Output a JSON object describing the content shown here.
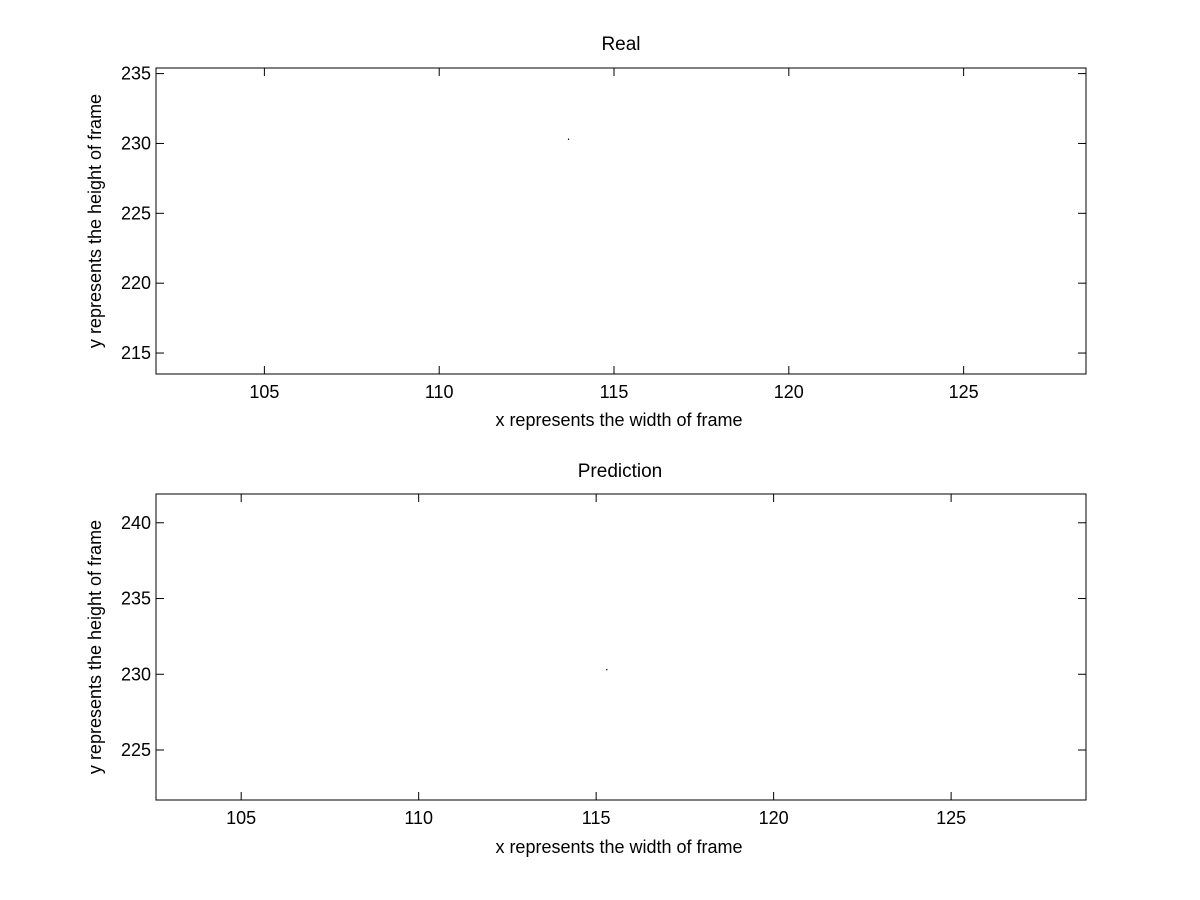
{
  "chart_data": [
    {
      "type": "scatter",
      "title": "Real",
      "xlabel": "x represents the width of frame",
      "ylabel": "y represents the height of frame",
      "xlim": [
        101.9,
        128.5
      ],
      "ylim": [
        213.5,
        235.4
      ],
      "xticks": [
        105,
        110,
        115,
        120,
        125
      ],
      "yticks": [
        215,
        220,
        225,
        230,
        235
      ],
      "grid": false,
      "points": [
        {
          "x": 113.7,
          "y": 230.3
        }
      ]
    },
    {
      "type": "scatter",
      "title": "Prediction",
      "xlabel": "x represents the width of frame",
      "ylabel": "y represents the height of frame",
      "xlim": [
        102.6,
        128.8
      ],
      "ylim": [
        221.7,
        241.9
      ],
      "xticks": [
        105,
        110,
        115,
        120,
        125
      ],
      "yticks": [
        225,
        230,
        235,
        240
      ],
      "grid": false,
      "points": [
        {
          "x": 115.3,
          "y": 230.3
        }
      ]
    }
  ]
}
